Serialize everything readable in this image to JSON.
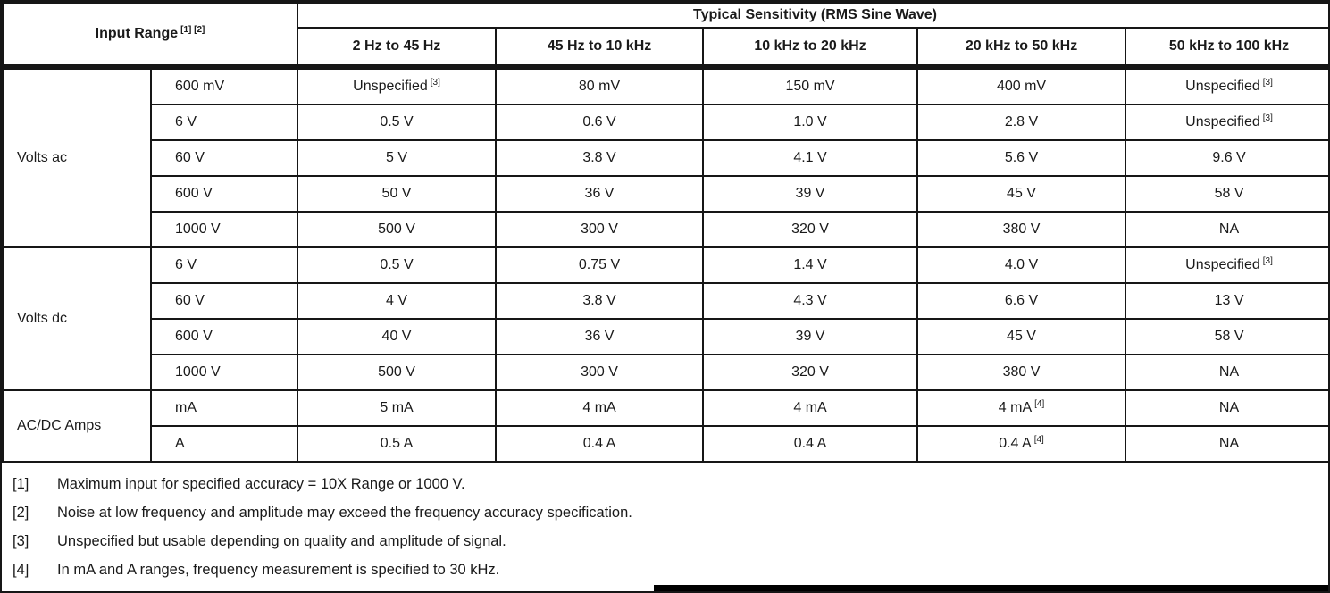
{
  "colors": {
    "border": "#161616",
    "background": "#ffffff",
    "text": "#1a1a1a"
  },
  "table": {
    "header": {
      "input_range_label": "Input Range",
      "input_range_sup": "[1] [2]",
      "sensitivity_title": "Typical Sensitivity (RMS Sine Wave)",
      "frequency_bands": [
        "2 Hz to 45 Hz",
        "45 Hz to 10 kHz",
        "10 kHz to 20 kHz",
        "20 kHz to 50 kHz",
        "50 kHz to 100 kHz"
      ]
    },
    "groups": [
      {
        "label": "Volts ac",
        "rows": [
          {
            "range": "600 mV",
            "cells": [
              {
                "t": "Unspecified",
                "s": "[3]"
              },
              {
                "t": "80 mV"
              },
              {
                "t": "150 mV"
              },
              {
                "t": "400 mV"
              },
              {
                "t": "Unspecified",
                "s": "[3]"
              }
            ]
          },
          {
            "range": "6 V",
            "cells": [
              {
                "t": "0.5 V"
              },
              {
                "t": "0.6 V"
              },
              {
                "t": "1.0 V"
              },
              {
                "t": "2.8 V"
              },
              {
                "t": "Unspecified",
                "s": "[3]"
              }
            ]
          },
          {
            "range": "60 V",
            "cells": [
              {
                "t": "5 V"
              },
              {
                "t": "3.8 V"
              },
              {
                "t": "4.1 V"
              },
              {
                "t": "5.6 V"
              },
              {
                "t": "9.6 V"
              }
            ]
          },
          {
            "range": "600 V",
            "cells": [
              {
                "t": "50 V"
              },
              {
                "t": "36 V"
              },
              {
                "t": "39 V"
              },
              {
                "t": "45 V"
              },
              {
                "t": "58 V"
              }
            ]
          },
          {
            "range": "1000 V",
            "cells": [
              {
                "t": "500 V"
              },
              {
                "t": "300 V"
              },
              {
                "t": "320 V"
              },
              {
                "t": "380 V"
              },
              {
                "t": "NA"
              }
            ]
          }
        ]
      },
      {
        "label": "Volts dc",
        "rows": [
          {
            "range": "6 V",
            "cells": [
              {
                "t": "0.5 V"
              },
              {
                "t": "0.75 V"
              },
              {
                "t": "1.4 V"
              },
              {
                "t": "4.0 V"
              },
              {
                "t": "Unspecified",
                "s": "[3]"
              }
            ]
          },
          {
            "range": "60 V",
            "cells": [
              {
                "t": "4 V"
              },
              {
                "t": "3.8 V"
              },
              {
                "t": "4.3 V"
              },
              {
                "t": "6.6 V"
              },
              {
                "t": "13 V"
              }
            ]
          },
          {
            "range": "600 V",
            "cells": [
              {
                "t": "40 V"
              },
              {
                "t": "36 V"
              },
              {
                "t": "39 V"
              },
              {
                "t": "45 V"
              },
              {
                "t": "58 V"
              }
            ]
          },
          {
            "range": "1000 V",
            "cells": [
              {
                "t": "500 V"
              },
              {
                "t": "300 V"
              },
              {
                "t": "320 V"
              },
              {
                "t": "380 V"
              },
              {
                "t": "NA"
              }
            ]
          }
        ]
      },
      {
        "label": "AC/DC Amps",
        "rows": [
          {
            "range": "mA",
            "cells": [
              {
                "t": "5 mA"
              },
              {
                "t": "4 mA"
              },
              {
                "t": "4 mA"
              },
              {
                "t": "4 mA",
                "s": "[4]"
              },
              {
                "t": "NA"
              }
            ]
          },
          {
            "range": "A",
            "cells": [
              {
                "t": "0.5 A"
              },
              {
                "t": "0.4 A"
              },
              {
                "t": "0.4 A"
              },
              {
                "t": "0.4 A",
                "s": "[4]"
              },
              {
                "t": "NA"
              }
            ]
          }
        ]
      }
    ],
    "footnotes": [
      {
        "ref": "[1]",
        "text": "Maximum input for specified accuracy = 10X Range or 1000 V."
      },
      {
        "ref": "[2]",
        "text": "Noise at low frequency and amplitude may exceed the frequency accuracy specification."
      },
      {
        "ref": "[3]",
        "text": "Unspecified but usable depending on quality and amplitude of signal."
      },
      {
        "ref": "[4]",
        "text": "In mA and A ranges, frequency measurement is specified to 30 kHz."
      }
    ]
  }
}
